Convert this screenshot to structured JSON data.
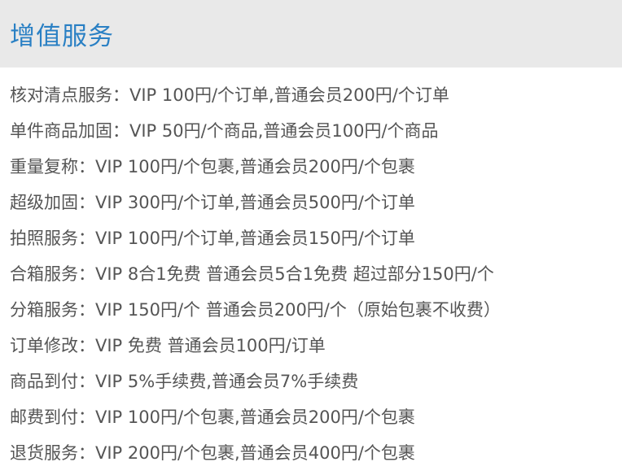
{
  "header": {
    "title": "增值服务",
    "title_color": "#2a80c4"
  },
  "rows": [
    "核对清点服务：VIP 100円/个订单,普通会员200円/个订单",
    "单件商品加固：VIP 50円/个商品,普通会员100円/个商品",
    "重量复称：VIP 100円/个包裹,普通会员200円/个包裹",
    "超级加固：VIP 300円/个订单,普通会员500円/个订单",
    "拍照服务：VIP 100円/个订单,普通会员150円/个订单",
    "合箱服务：VIP 8合1免费 普通会员5合1免费 超过部分150円/个",
    "分箱服务：VIP 150円/个 普通会员200円/个（原始包裹不收费）",
    "订单修改：VIP 免费 普通会员100円/订单",
    "商品到付：VIP 5%手续费,普通会员7%手续费",
    "邮费到付：VIP 100円/个包裹,普通会员200円/个包裹",
    "退货服务：VIP 200円/个包裹,普通会员400円/个包裹"
  ]
}
